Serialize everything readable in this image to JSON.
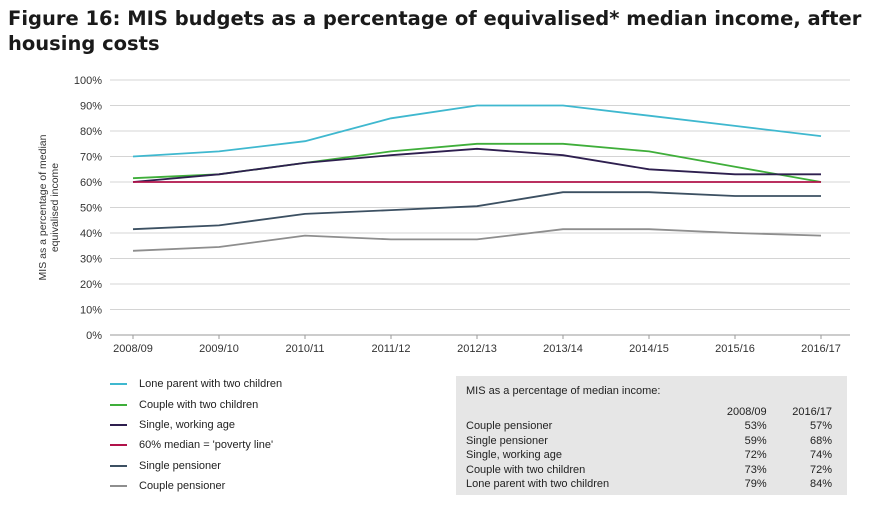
{
  "title": "Figure 16: MIS budgets as a percentage of equivalised* median income, after housing costs",
  "chart_data": {
    "type": "line",
    "title": "Figure 16: MIS budgets as a percentage of equivalised* median income, after housing costs",
    "xlabel": "",
    "ylabel": "MIS as a percentage of median equivalised income",
    "ylim": [
      0,
      100
    ],
    "y_ticks": [
      "0%",
      "10%",
      "20%",
      "30%",
      "40%",
      "50%",
      "60%",
      "70%",
      "80%",
      "90%",
      "100%"
    ],
    "grid": true,
    "legend_position": "bottom-left",
    "x": [
      "2008/09",
      "2009/10",
      "2010/11",
      "2011/12",
      "2012/13",
      "2013/14",
      "2014/15",
      "2015/16",
      "2016/17"
    ],
    "series": [
      {
        "name": "Lone parent with two children",
        "color": "#3fb8cf",
        "values": [
          70,
          72,
          76,
          85,
          90,
          90,
          86,
          82,
          78
        ]
      },
      {
        "name": "Couple with two children",
        "color": "#3fae3a",
        "values": [
          61.5,
          63,
          67.5,
          72,
          75,
          75,
          72,
          66,
          60
        ]
      },
      {
        "name": "Single, working age",
        "color": "#2e1f4f",
        "values": [
          60,
          63,
          67.5,
          70.5,
          73,
          70.5,
          65,
          63,
          63
        ]
      },
      {
        "name": "60% median = 'poverty line'",
        "color": "#b1124a",
        "values": [
          60,
          60,
          60,
          60,
          60,
          60,
          60,
          60,
          60
        ]
      },
      {
        "name": "Single pensioner",
        "color": "#3c5062",
        "values": [
          41.5,
          43,
          47.5,
          49,
          50.5,
          56,
          56,
          54.5,
          54.5
        ]
      },
      {
        "name": "Couple pensioner",
        "color": "#8e8e8e",
        "values": [
          33,
          34.5,
          39,
          37.5,
          37.5,
          41.5,
          41.5,
          40,
          39
        ]
      }
    ]
  },
  "table": {
    "heading": "MIS as a percentage of median income:",
    "col1": "2008/09",
    "col2": "2016/17",
    "rows": [
      {
        "label": "Couple pensioner",
        "v1": "53%",
        "v2": "57%"
      },
      {
        "label": "Single pensioner",
        "v1": "59%",
        "v2": "68%"
      },
      {
        "label": "Single, working age",
        "v1": "72%",
        "v2": "74%"
      },
      {
        "label": "Couple with two children",
        "v1": "73%",
        "v2": "72%"
      },
      {
        "label": "Lone parent with two children",
        "v1": "79%",
        "v2": "84%"
      }
    ]
  }
}
